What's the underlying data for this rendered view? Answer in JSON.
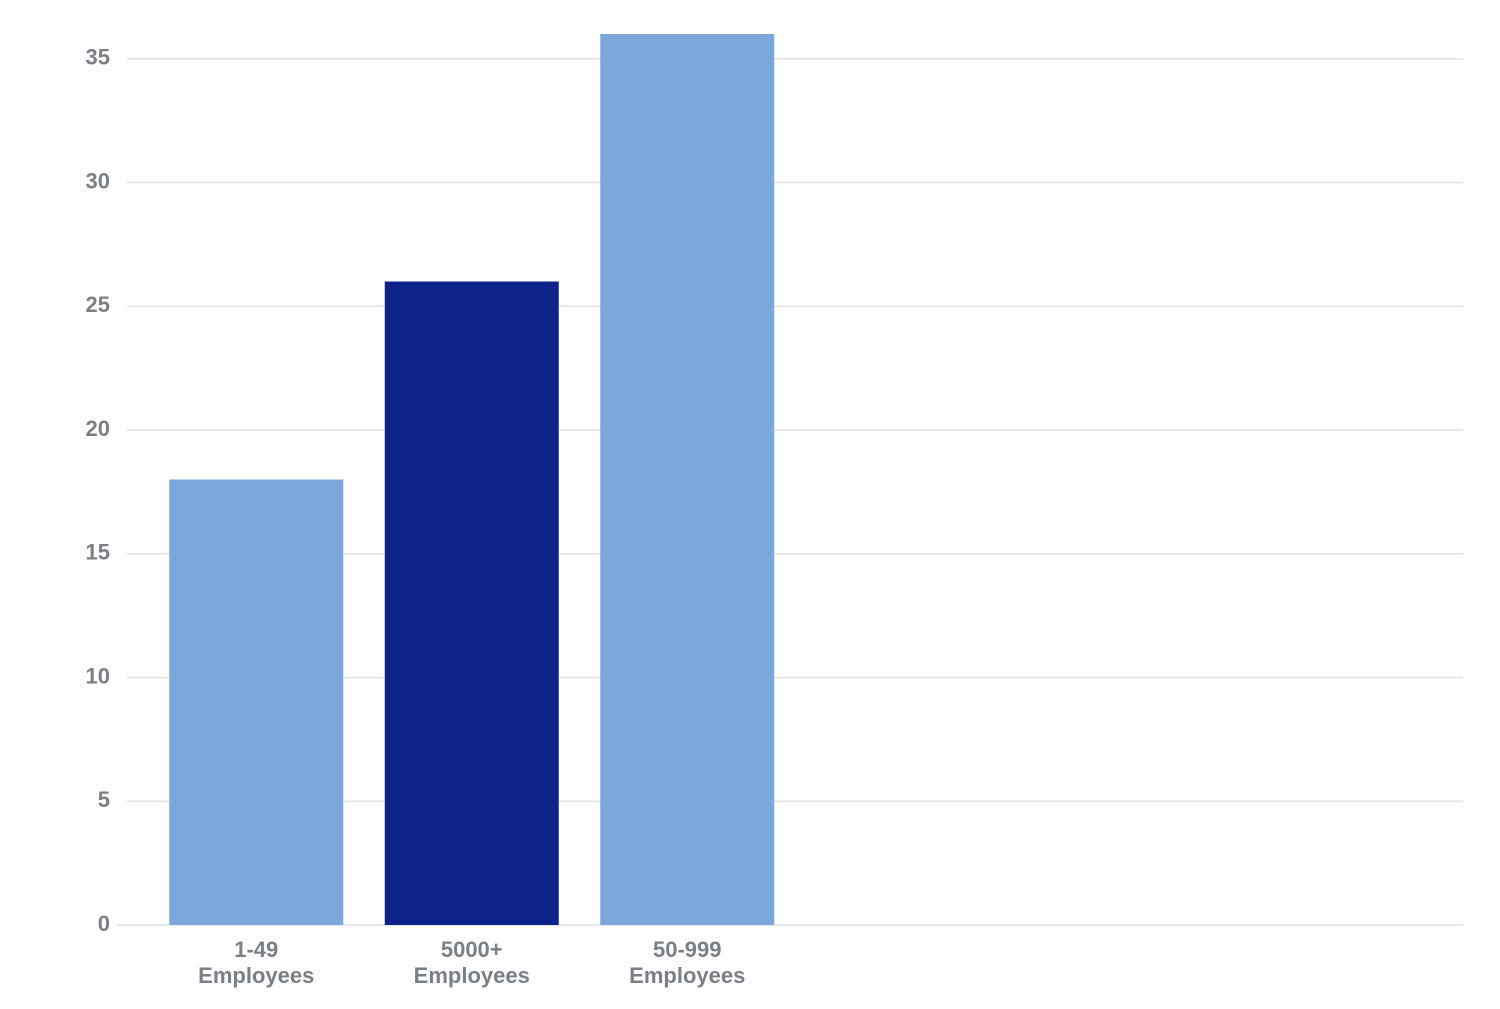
{
  "chart_data": {
    "type": "bar",
    "categories": [
      "1-49 Employees",
      "5000+ Employees",
      "50-999 Employees"
    ],
    "values": [
      18,
      26,
      36
    ],
    "colors": [
      "#7ba7da",
      "#0d238a",
      "#7ba7da"
    ],
    "ylim": [
      0,
      36
    ],
    "yticks": [
      0,
      5,
      10,
      15,
      20,
      25,
      30,
      35
    ],
    "grid": true
  }
}
